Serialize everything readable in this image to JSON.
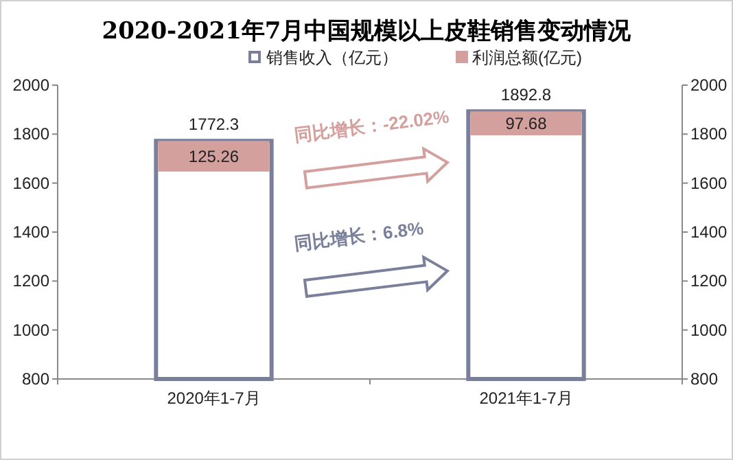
{
  "chart_data": {
    "type": "bar",
    "title": "2020-2021年7月中国规模以上皮鞋销售变动情况",
    "categories": [
      "2020年1-7月",
      "2021年1-7月"
    ],
    "series": [
      {
        "name": "销售收入（亿元）",
        "color": "#7a7f9c",
        "values": [
          1772.3,
          1892.8
        ]
      },
      {
        "name": "利润总额(亿元)",
        "color": "#d4a09e",
        "values": [
          125.26,
          97.68
        ],
        "base": [
          1647.04,
          1795.12
        ]
      }
    ],
    "ylim": [
      800,
      2000
    ],
    "yticks": [
      800,
      1000,
      1200,
      1400,
      1600,
      1800,
      2000
    ],
    "y2lim": [
      800,
      2000
    ],
    "y2ticks": [
      800,
      1000,
      1200,
      1400,
      1600,
      1800,
      2000
    ],
    "data_labels": true,
    "legend": "top",
    "grid": false,
    "annotations": [
      "同比增长：-22.02%",
      "同比增长：6.8%"
    ]
  }
}
